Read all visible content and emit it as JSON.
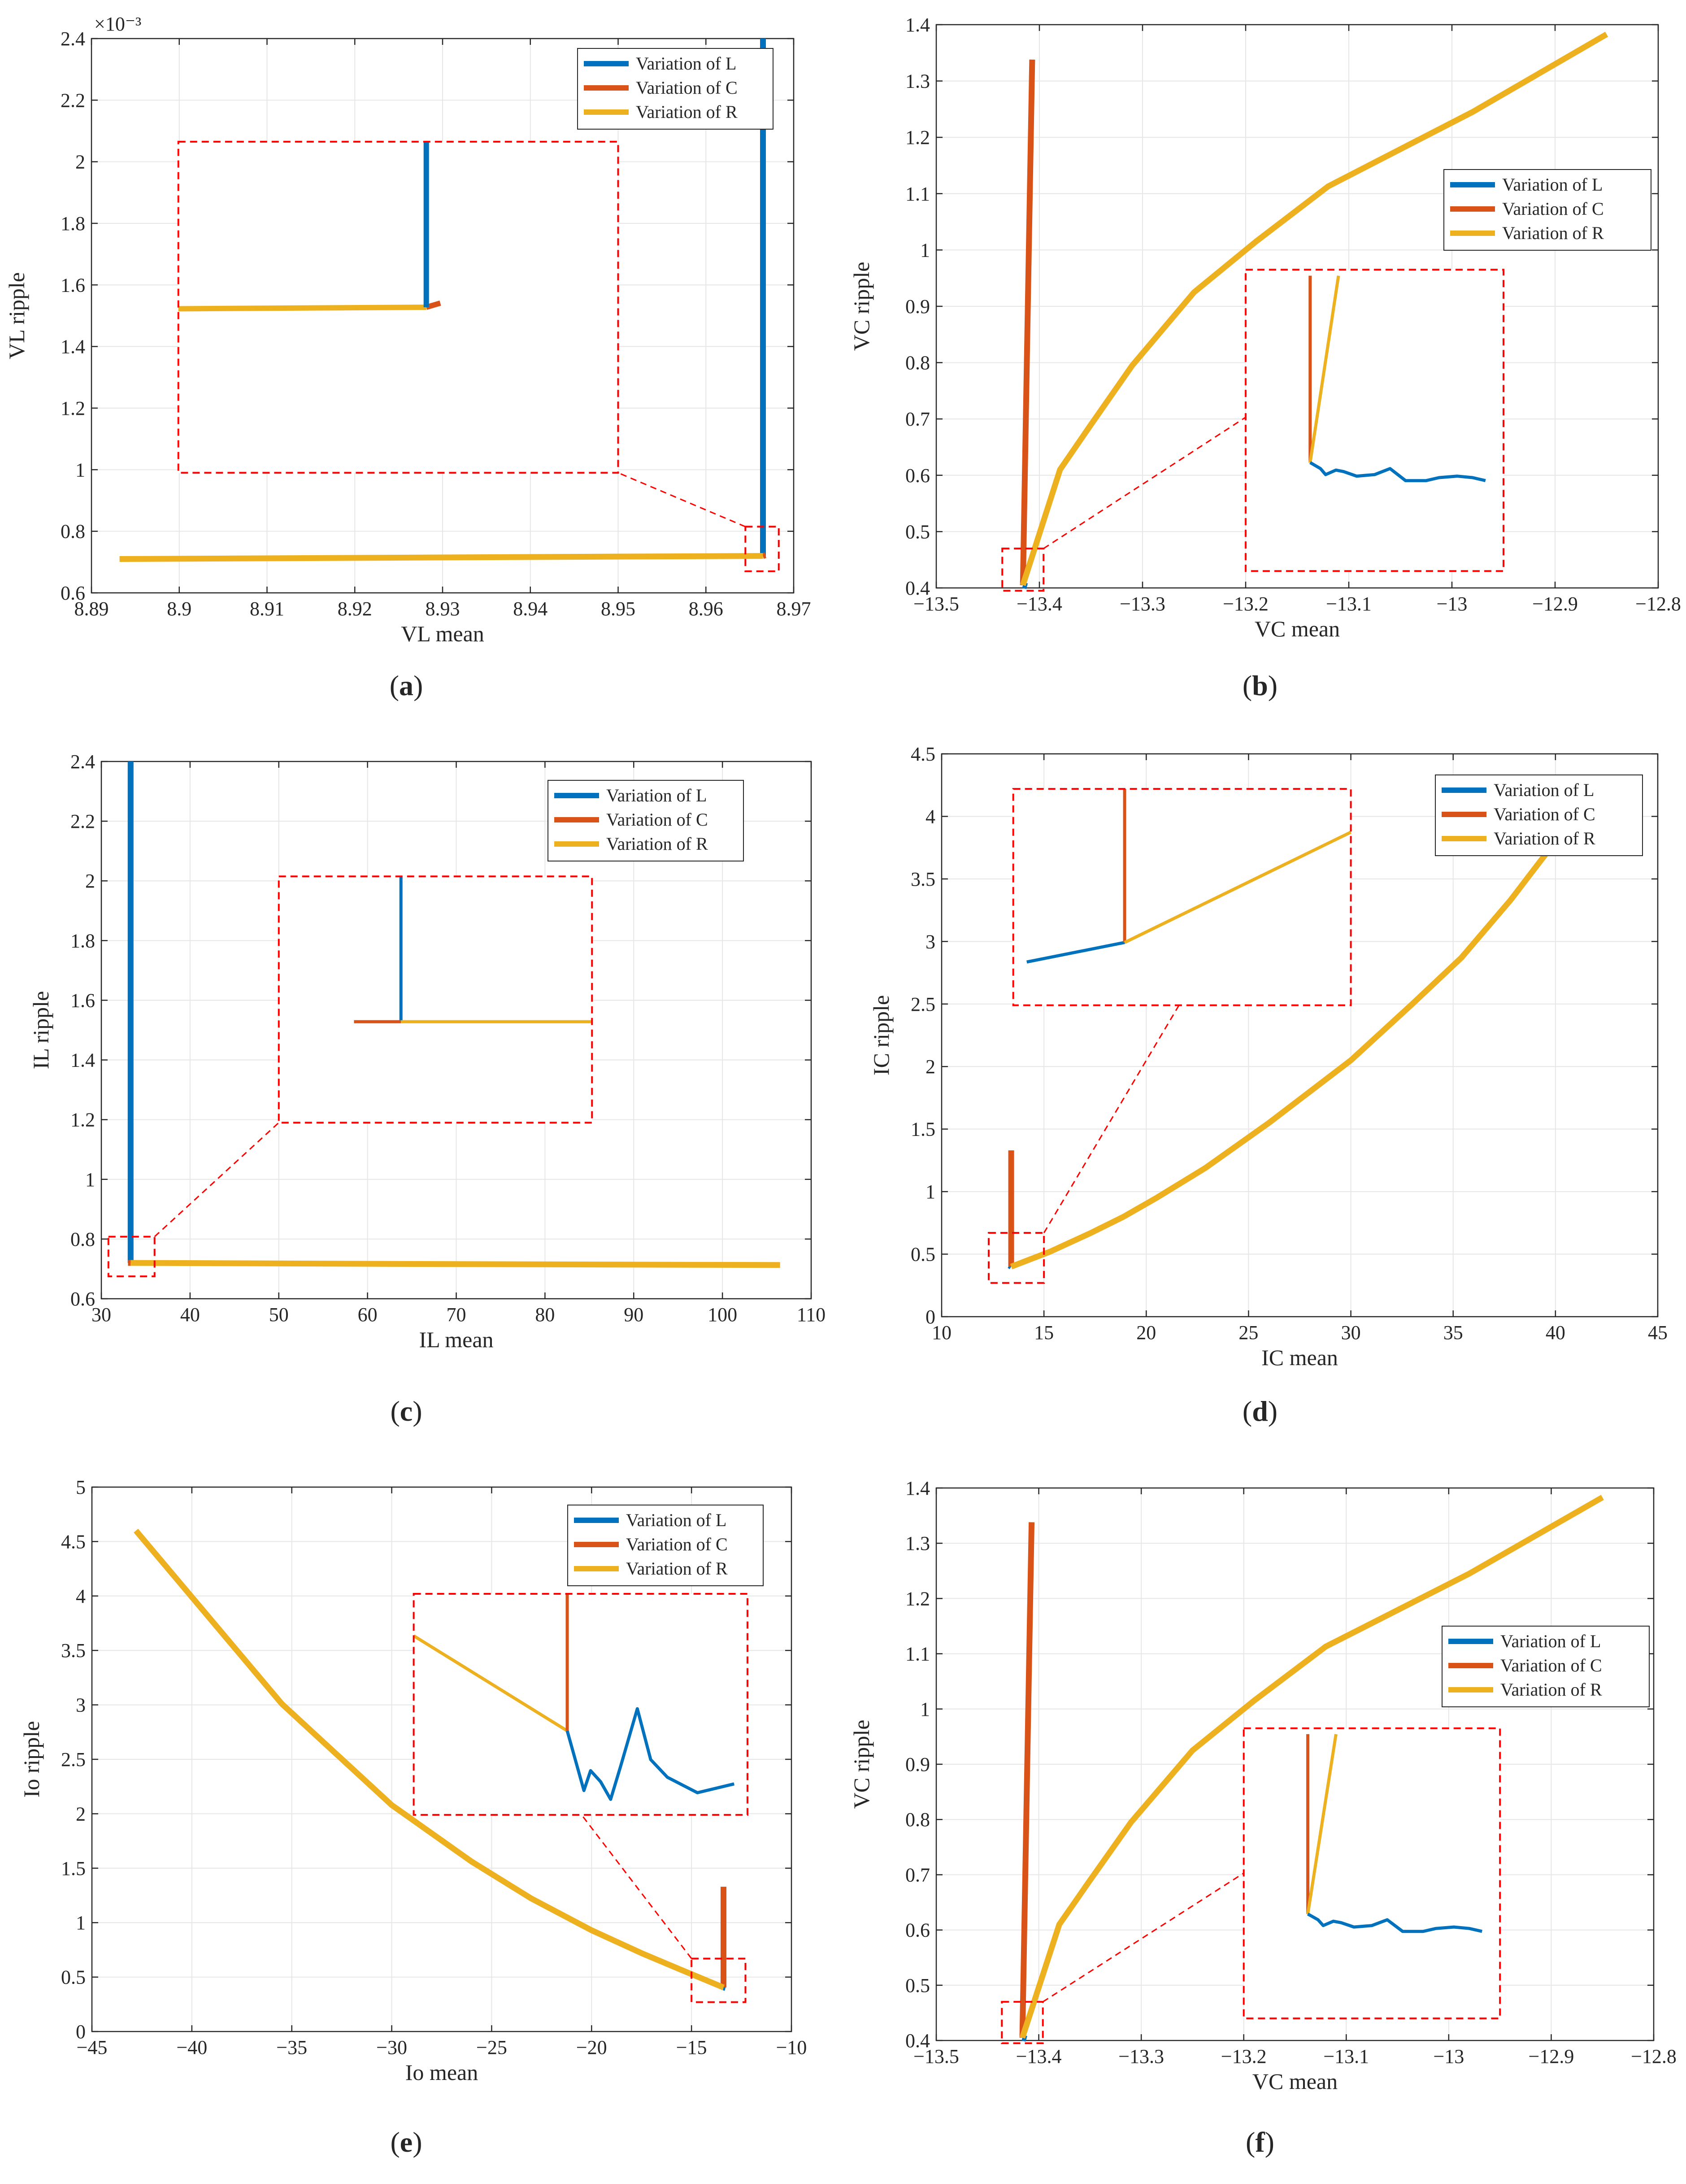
{
  "figure": {
    "legend_entries": [
      "Variation of L",
      "Variation of C",
      "Variation of R"
    ],
    "colors": {
      "L": "#0072BD",
      "C": "#D95319",
      "R": "#EDB120",
      "zoom_box": "#FF0000",
      "grid": "#E6E6E6"
    }
  },
  "chart_data": [
    {
      "id": "a",
      "panel_label": [
        "(",
        "a",
        ")"
      ],
      "type": "line",
      "xlabel": "VL mean",
      "ylabel": "VL ripple",
      "y_exponent": "×10⁻³",
      "xlim": [
        8.89,
        8.97
      ],
      "ylim": [
        0.6,
        2.4
      ],
      "xticks": [
        8.89,
        8.9,
        8.91,
        8.92,
        8.93,
        8.94,
        8.95,
        8.96,
        8.97
      ],
      "xtick_labels": [
        "8.89",
        "8.9",
        "8.91",
        "8.92",
        "8.93",
        "8.94",
        "8.95",
        "8.96",
        "8.97"
      ],
      "yticks": [
        0.6,
        0.8,
        1,
        1.2,
        1.4,
        1.6,
        1.8,
        2,
        2.2,
        2.4
      ],
      "ytick_labels": [
        "0.6",
        "0.8",
        "1",
        "1.2",
        "1.4",
        "1.6",
        "1.8",
        "2",
        "2.2",
        "2.4"
      ],
      "series": [
        {
          "name": "Variation of L",
          "color": "#0072BD",
          "x": [
            8.9665,
            8.9665
          ],
          "y": [
            0.72,
            2.4
          ]
        },
        {
          "name": "Variation of C",
          "color": "#D95319",
          "x": [
            8.9665,
            8.9668
          ],
          "y": [
            0.72,
            0.722
          ]
        },
        {
          "name": "Variation of R",
          "color": "#EDB120",
          "x": [
            8.8932,
            8.93,
            8.9665
          ],
          "y": [
            0.71,
            0.715,
            0.72
          ]
        }
      ],
      "legend_position": "top-right",
      "zoom": {
        "source": {
          "x": [
            8.9645,
            8.9683
          ],
          "y": [
            0.67,
            0.815
          ]
        },
        "inset": {
          "x": [
            8.8999,
            8.95
          ],
          "y": [
            0.99,
            2.065
          ]
        },
        "view": {
          "x": [
            8.9612,
            8.9706
          ],
          "y": [
            0.64,
            0.8
          ]
        },
        "link": [
          [
            8.9645,
            0.815
          ],
          [
            8.95,
            0.99
          ]
        ]
      }
    },
    {
      "id": "b",
      "panel_label": [
        "(",
        "b",
        ")"
      ],
      "type": "line",
      "xlabel": "VC mean",
      "ylabel": "VC ripple",
      "xlim": [
        -13.5,
        -12.8
      ],
      "ylim": [
        0.4,
        1.4
      ],
      "xticks": [
        -13.5,
        -13.4,
        -13.3,
        -13.2,
        -13.1,
        -13,
        -12.9,
        -12.8
      ],
      "xtick_labels": [
        "−13.5",
        "−13.4",
        "−13.3",
        "−13.2",
        "−13.1",
        "−13",
        "−12.9",
        "−12.8"
      ],
      "yticks": [
        0.4,
        0.5,
        0.6,
        0.7,
        0.8,
        0.9,
        1,
        1.1,
        1.2,
        1.3,
        1.4
      ],
      "ytick_labels": [
        "0.4",
        "0.5",
        "0.6",
        "0.7",
        "0.8",
        "0.9",
        "1",
        "1.1",
        "1.2",
        "1.3",
        "1.4"
      ],
      "series": [
        {
          "name": "Variation of L",
          "color": "#0072BD",
          "x": [
            -13.416,
            -13.412
          ],
          "y": [
            0.405,
            0.403
          ]
        },
        {
          "name": "Variation of C",
          "color": "#D95319",
          "x": [
            -13.416,
            -13.407
          ],
          "y": [
            0.405,
            1.338
          ]
        },
        {
          "name": "Variation of R",
          "color": "#EDB120",
          "x": [
            -13.416,
            -13.38,
            -13.35,
            -13.31,
            -13.25,
            -13.19,
            -13.12,
            -12.98,
            -12.85
          ],
          "y": [
            0.405,
            0.61,
            0.69,
            0.795,
            0.925,
            1.015,
            1.113,
            1.245,
            1.383
          ]
        }
      ],
      "legend_position": "right",
      "zoom": {
        "source": {
          "x": [
            -13.436,
            -13.396
          ],
          "y": [
            0.395,
            0.47
          ]
        },
        "inset": {
          "x": [
            -13.2,
            -12.95
          ],
          "y": [
            0.43,
            0.965
          ]
        },
        "link": [
          [
            -13.396,
            0.47
          ],
          [
            -13.2,
            0.703
          ]
        ],
        "inset_series": [
          {
            "color": "#D95319",
            "x": [
              0.25,
              0.25
            ],
            "y": [
              0.36,
              0.98
            ]
          },
          {
            "color": "#EDB120",
            "x": [
              0.25,
              0.36
            ],
            "y": [
              0.36,
              0.98
            ]
          },
          {
            "color": "#0072BD",
            "x": [
              0.25,
              0.29,
              0.31,
              0.35,
              0.38,
              0.43,
              0.5,
              0.56,
              0.62,
              0.7,
              0.75,
              0.82,
              0.88,
              0.93
            ],
            "y": [
              0.36,
              0.34,
              0.32,
              0.335,
              0.33,
              0.315,
              0.32,
              0.34,
              0.3,
              0.3,
              0.31,
              0.315,
              0.31,
              0.3
            ]
          }
        ]
      }
    },
    {
      "id": "c",
      "panel_label": [
        "(",
        "c",
        ")"
      ],
      "type": "line",
      "xlabel": "IL mean",
      "ylabel": "IL ripple",
      "xlim": [
        30,
        110
      ],
      "ylim": [
        0.6,
        2.4
      ],
      "xticks": [
        30,
        40,
        50,
        60,
        70,
        80,
        90,
        100,
        110
      ],
      "xtick_labels": [
        "30",
        "40",
        "50",
        "60",
        "70",
        "80",
        "90",
        "100",
        "110"
      ],
      "yticks": [
        0.6,
        0.8,
        1,
        1.2,
        1.4,
        1.6,
        1.8,
        2,
        2.2,
        2.4
      ],
      "ytick_labels": [
        "0.6",
        "0.8",
        "1",
        "1.2",
        "1.4",
        "1.6",
        "1.8",
        "2",
        "2.2",
        "2.4"
      ],
      "series": [
        {
          "name": "Variation of L",
          "color": "#0072BD",
          "x": [
            33.3,
            33.3
          ],
          "y": [
            0.72,
            2.4
          ]
        },
        {
          "name": "Variation of C",
          "color": "#D95319",
          "x": [
            33.0,
            33.3
          ],
          "y": [
            0.72,
            0.72
          ]
        },
        {
          "name": "Variation of R",
          "color": "#EDB120",
          "x": [
            33.3,
            70,
            106.5
          ],
          "y": [
            0.72,
            0.716,
            0.713
          ]
        }
      ],
      "legend_position": "top-right",
      "zoom": {
        "source": {
          "x": [
            30.8,
            36.0
          ],
          "y": [
            0.675,
            0.808
          ]
        },
        "inset": {
          "x": [
            50,
            85.3
          ],
          "y": [
            1.19,
            2.015
          ]
        },
        "link": [
          [
            36.0,
            0.808
          ],
          [
            50,
            1.19
          ]
        ],
        "inset_series": [
          {
            "color": "#0072BD",
            "x": [
              0.39,
              0.39
            ],
            "y": [
              0.41,
              1.0
            ]
          },
          {
            "color": "#D95319",
            "x": [
              0.24,
              0.39
            ],
            "y": [
              0.41,
              0.41
            ]
          },
          {
            "color": "#EDB120",
            "x": [
              0.39,
              1.0
            ],
            "y": [
              0.41,
              0.41
            ]
          }
        ]
      }
    },
    {
      "id": "d",
      "panel_label": [
        "(",
        "d",
        ")"
      ],
      "type": "line",
      "xlabel": "IC mean",
      "ylabel": "IC ripple",
      "xlim": [
        10,
        45
      ],
      "ylim": [
        0,
        4.5
      ],
      "xticks": [
        10,
        15,
        20,
        25,
        30,
        35,
        40,
        45
      ],
      "xtick_labels": [
        "10",
        "15",
        "20",
        "25",
        "30",
        "35",
        "40",
        "45"
      ],
      "yticks": [
        0,
        0.5,
        1,
        1.5,
        2,
        2.5,
        3,
        3.5,
        4,
        4.5
      ],
      "ytick_labels": [
        "0",
        "0.5",
        "1",
        "1.5",
        "2",
        "2.5",
        "3",
        "3.5",
        "4",
        "4.5"
      ],
      "series": [
        {
          "name": "Variation of L",
          "color": "#0072BD",
          "x": [
            13.3,
            13.4
          ],
          "y": [
            0.41,
            0.4
          ]
        },
        {
          "name": "Variation of C",
          "color": "#D95319",
          "x": [
            13.4,
            13.4
          ],
          "y": [
            0.4,
            1.33
          ]
        },
        {
          "name": "Variation of R",
          "color": "#EDB120",
          "x": [
            13.4,
            15.3,
            17.3,
            18.9,
            20.5,
            22.9,
            26.0,
            30.0,
            33.0,
            35.4,
            37.8,
            40.0
          ],
          "y": [
            0.4,
            0.52,
            0.67,
            0.8,
            0.95,
            1.19,
            1.55,
            2.05,
            2.5,
            2.87,
            3.33,
            3.8
          ]
        }
      ],
      "legend_position": "top-right",
      "zoom": {
        "source": {
          "x": [
            12.3,
            15.0
          ],
          "y": [
            0.27,
            0.67
          ]
        },
        "inset": {
          "x": [
            13.5,
            30.0
          ],
          "y": [
            2.49,
            4.22
          ]
        },
        "link": [
          [
            15.0,
            0.67
          ],
          [
            21.6,
            2.49
          ]
        ],
        "inset_series": [
          {
            "color": "#0072BD",
            "x": [
              0.04,
              0.33
            ],
            "y": [
              0.2,
              0.29
            ]
          },
          {
            "color": "#D95319",
            "x": [
              0.33,
              0.33
            ],
            "y": [
              0.29,
              1.0
            ]
          },
          {
            "color": "#EDB120",
            "x": [
              0.33,
              1.0
            ],
            "y": [
              0.29,
              0.8
            ]
          }
        ]
      }
    },
    {
      "id": "e",
      "panel_label": [
        "(",
        "e",
        ")"
      ],
      "type": "line",
      "xlabel": "Io mean",
      "ylabel": "Io ripple",
      "xlim": [
        -45,
        -10
      ],
      "ylim": [
        0,
        5
      ],
      "xticks": [
        -45,
        -40,
        -35,
        -30,
        -25,
        -20,
        -15,
        -10
      ],
      "xtick_labels": [
        "−45",
        "−40",
        "−35",
        "−30",
        "−25",
        "−20",
        "−15",
        "−10"
      ],
      "yticks": [
        0,
        0.5,
        1,
        1.5,
        2,
        2.5,
        3,
        3.5,
        4,
        4.5,
        5
      ],
      "ytick_labels": [
        "0",
        "0.5",
        "1",
        "1.5",
        "2",
        "2.5",
        "3",
        "3.5",
        "4",
        "4.5",
        "5"
      ],
      "series": [
        {
          "name": "Variation of L",
          "color": "#0072BD",
          "x": [
            -13.4,
            -13.3
          ],
          "y": [
            0.405,
            0.4
          ]
        },
        {
          "name": "Variation of C",
          "color": "#D95319",
          "x": [
            -13.4,
            -13.4
          ],
          "y": [
            0.405,
            1.33
          ]
        },
        {
          "name": "Variation of R",
          "color": "#EDB120",
          "x": [
            -42.8,
            -35.5,
            -30.0,
            -26.0,
            -23.0,
            -20.0,
            -17.5,
            -15.3,
            -13.4
          ],
          "y": [
            4.6,
            3.01,
            2.08,
            1.56,
            1.22,
            0.93,
            0.72,
            0.55,
            0.405
          ]
        }
      ],
      "legend_position": "top-right",
      "zoom": {
        "source": {
          "x": [
            -15.0,
            -12.3
          ],
          "y": [
            0.27,
            0.67
          ]
        },
        "inset": {
          "x": [
            -28.9,
            -12.2
          ],
          "y": [
            1.99,
            4.02
          ]
        },
        "link": [
          [
            -15.0,
            0.67
          ],
          [
            -20.5,
            1.99
          ]
        ],
        "inset_series": [
          {
            "color": "#EDB120",
            "x": [
              0.0,
              0.46
            ],
            "y": [
              0.81,
              0.38
            ]
          },
          {
            "color": "#D95319",
            "x": [
              0.46,
              0.46
            ],
            "y": [
              0.38,
              1.0
            ]
          },
          {
            "color": "#0072BD",
            "x": [
              0.46,
              0.51,
              0.53,
              0.56,
              0.59,
              0.62,
              0.67,
              0.71,
              0.76,
              0.85,
              0.96
            ],
            "y": [
              0.38,
              0.11,
              0.2,
              0.15,
              0.07,
              0.22,
              0.48,
              0.25,
              0.17,
              0.1,
              0.14
            ]
          }
        ]
      }
    },
    {
      "id": "f",
      "panel_label": [
        "(",
        "f",
        ")"
      ],
      "type": "line",
      "xlabel": "VC mean",
      "ylabel": "VC ripple",
      "xlim": [
        -13.5,
        -12.8
      ],
      "ylim": [
        0.4,
        1.4
      ],
      "xticks": [
        -13.5,
        -13.4,
        -13.3,
        -13.2,
        -13.1,
        -13,
        -12.9,
        -12.8
      ],
      "xtick_labels": [
        "−13.5",
        "−13.4",
        "−13.3",
        "−13.2",
        "−13.1",
        "−13",
        "−12.9",
        "−12.8"
      ],
      "yticks": [
        0.4,
        0.5,
        0.6,
        0.7,
        0.8,
        0.9,
        1,
        1.1,
        1.2,
        1.3,
        1.4
      ],
      "ytick_labels": [
        "0.4",
        "0.5",
        "0.6",
        "0.7",
        "0.8",
        "0.9",
        "1",
        "1.1",
        "1.2",
        "1.3",
        "1.4"
      ],
      "series": [
        {
          "name": "Variation of L",
          "color": "#0072BD",
          "x": [
            -13.416,
            -13.412
          ],
          "y": [
            0.405,
            0.403
          ]
        },
        {
          "name": "Variation of C",
          "color": "#D95319",
          "x": [
            -13.416,
            -13.407
          ],
          "y": [
            0.405,
            1.338
          ]
        },
        {
          "name": "Variation of R",
          "color": "#EDB120",
          "x": [
            -13.416,
            -13.38,
            -13.35,
            -13.31,
            -13.25,
            -13.19,
            -13.12,
            -12.98,
            -12.85
          ],
          "y": [
            0.405,
            0.61,
            0.69,
            0.795,
            0.925,
            1.015,
            1.113,
            1.245,
            1.383
          ]
        }
      ],
      "legend_position": "right",
      "zoom": {
        "source": {
          "x": [
            -13.436,
            -13.396
          ],
          "y": [
            0.395,
            0.47
          ]
        },
        "inset": {
          "x": [
            -13.2,
            -12.95
          ],
          "y": [
            0.44,
            0.965
          ]
        },
        "link": [
          [
            -13.396,
            0.47
          ],
          [
            -13.2,
            0.703
          ]
        ],
        "inset_series": [
          {
            "color": "#D95319",
            "x": [
              0.25,
              0.25
            ],
            "y": [
              0.36,
              0.98
            ]
          },
          {
            "color": "#EDB120",
            "x": [
              0.25,
              0.36
            ],
            "y": [
              0.36,
              0.98
            ]
          },
          {
            "color": "#0072BD",
            "x": [
              0.25,
              0.29,
              0.31,
              0.35,
              0.38,
              0.43,
              0.5,
              0.56,
              0.62,
              0.7,
              0.75,
              0.82,
              0.88,
              0.93
            ],
            "y": [
              0.36,
              0.34,
              0.32,
              0.335,
              0.33,
              0.315,
              0.32,
              0.34,
              0.3,
              0.3,
              0.31,
              0.315,
              0.31,
              0.3
            ]
          }
        ]
      }
    }
  ]
}
